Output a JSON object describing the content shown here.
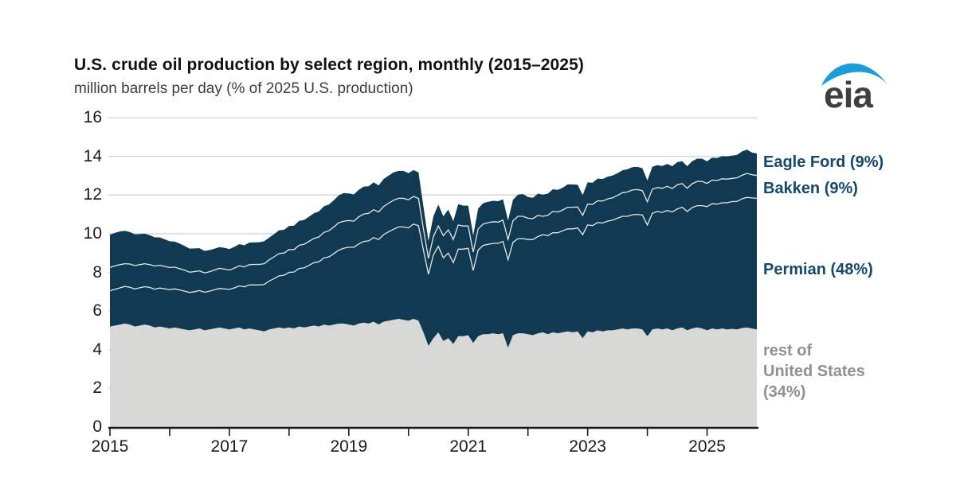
{
  "header": {
    "title": "U.S. crude oil production by select region, monthly (2015–2025)",
    "subtitle": "million barrels per day (% of 2025 U.S. production)"
  },
  "logo": {
    "text": "eia",
    "text_color": "#3f3f3f",
    "swoosh_color": "#1b9dd9"
  },
  "legend": {
    "eagle_ford": "Eagle Ford (9%)",
    "bakken": "Bakken (9%)",
    "permian": "Permian (48%)",
    "rest_lines": [
      "rest of",
      "United States",
      "(34%)"
    ],
    "navy_text_color": "#14496b",
    "gray_text_color": "#8f9091"
  },
  "chart_data": {
    "type": "area",
    "stacked": true,
    "title": "U.S. crude oil production by select region, monthly (2015–2025)",
    "ylabel": "million barrels per day",
    "unit": "million barrels per day",
    "x_start": "2015-01",
    "x_end": "2025-11",
    "x_interval": "monthly",
    "x_axis": {
      "tick_years": [
        2015,
        2016,
        2017,
        2018,
        2019,
        2020,
        2021,
        2022,
        2023,
        2024,
        2025
      ],
      "label_years": [
        2015,
        2017,
        2019,
        2021,
        2023,
        2025
      ]
    },
    "y_axis": {
      "min": 0,
      "max": 16,
      "ticks": [
        0,
        2,
        4,
        6,
        8,
        10,
        12,
        14,
        16
      ],
      "grid": true
    },
    "colors": {
      "rest_area": "#d8d8d6",
      "shale_area": "#113a52",
      "separator_line": "rgba(255,255,255,0.88)",
      "gridline": "#d9d9d9",
      "axis": "#1a1a1a"
    },
    "stack_order_bottom_to_top": [
      "rest of United States",
      "Permian",
      "Bakken",
      "Eagle Ford"
    ],
    "series": [
      {
        "name": "rest of United States",
        "share_of_2025": "34%",
        "values": [
          5.2,
          5.25,
          5.3,
          5.35,
          5.3,
          5.2,
          5.25,
          5.3,
          5.25,
          5.15,
          5.2,
          5.15,
          5.1,
          5.15,
          5.1,
          5.05,
          5.0,
          5.05,
          5.1,
          5.0,
          5.05,
          5.1,
          5.15,
          5.1,
          5.05,
          5.1,
          5.15,
          5.05,
          5.1,
          5.05,
          5.0,
          4.95,
          5.05,
          5.1,
          5.15,
          5.1,
          5.15,
          5.1,
          5.2,
          5.15,
          5.2,
          5.25,
          5.2,
          5.3,
          5.25,
          5.3,
          5.35,
          5.35,
          5.3,
          5.25,
          5.35,
          5.4,
          5.35,
          5.45,
          5.3,
          5.45,
          5.5,
          5.55,
          5.6,
          5.55,
          5.5,
          5.6,
          5.5,
          4.9,
          4.2,
          4.6,
          4.9,
          4.45,
          4.6,
          4.3,
          4.7,
          4.7,
          4.75,
          4.35,
          4.7,
          4.8,
          4.8,
          4.85,
          4.8,
          4.85,
          4.1,
          4.75,
          4.85,
          4.85,
          4.8,
          4.75,
          4.85,
          4.9,
          4.8,
          4.9,
          4.85,
          4.9,
          4.95,
          4.9,
          4.95,
          4.6,
          4.95,
          4.9,
          5.0,
          4.95,
          5.0,
          5.0,
          5.05,
          5.1,
          5.05,
          5.1,
          5.1,
          5.05,
          4.7,
          5.05,
          5.1,
          5.05,
          5.1,
          5.0,
          5.1,
          5.15,
          5.0,
          5.1,
          5.15,
          5.1,
          5.0,
          5.1,
          5.05,
          5.1,
          5.05,
          5.08,
          5.05,
          5.12,
          5.15,
          5.1,
          5.05
        ]
      },
      {
        "name": "Permian",
        "share_of_2025": "48%",
        "values": [
          1.85,
          1.87,
          1.9,
          1.92,
          1.93,
          1.94,
          1.95,
          1.96,
          1.97,
          1.98,
          1.99,
          2.0,
          2.0,
          2.0,
          1.99,
          1.98,
          1.96,
          1.95,
          1.96,
          1.97,
          1.98,
          2.0,
          2.02,
          2.04,
          2.07,
          2.1,
          2.15,
          2.2,
          2.25,
          2.3,
          2.35,
          2.42,
          2.5,
          2.58,
          2.67,
          2.75,
          2.85,
          2.92,
          3.0,
          3.08,
          3.16,
          3.25,
          3.35,
          3.45,
          3.55,
          3.67,
          3.8,
          3.9,
          4.0,
          4.05,
          4.12,
          4.2,
          4.28,
          4.35,
          4.4,
          4.5,
          4.6,
          4.68,
          4.75,
          4.8,
          4.8,
          4.9,
          4.92,
          4.25,
          3.7,
          4.3,
          4.45,
          4.3,
          4.4,
          4.2,
          4.5,
          4.5,
          4.5,
          3.75,
          4.45,
          4.6,
          4.65,
          4.65,
          4.7,
          4.75,
          4.55,
          4.8,
          4.9,
          4.9,
          4.9,
          4.95,
          5.0,
          5.05,
          5.1,
          5.15,
          5.2,
          5.25,
          5.3,
          5.35,
          5.35,
          5.35,
          5.5,
          5.52,
          5.58,
          5.6,
          5.65,
          5.7,
          5.75,
          5.8,
          5.85,
          5.88,
          5.9,
          5.92,
          5.75,
          6.0,
          6.05,
          6.05,
          6.1,
          6.12,
          6.18,
          6.22,
          6.15,
          6.25,
          6.3,
          6.35,
          6.4,
          6.45,
          6.48,
          6.5,
          6.55,
          6.58,
          6.62,
          6.68,
          6.73,
          6.75,
          6.78
        ]
      },
      {
        "name": "Bakken",
        "share_of_2025": "9%",
        "values": [
          1.2,
          1.22,
          1.2,
          1.18,
          1.2,
          1.21,
          1.2,
          1.19,
          1.18,
          1.2,
          1.18,
          1.16,
          1.15,
          1.12,
          1.1,
          1.08,
          1.05,
          1.04,
          1.02,
          1.0,
          1.0,
          1.02,
          1.04,
          1.03,
          1.0,
          1.02,
          1.04,
          1.03,
          1.05,
          1.06,
          1.06,
          1.08,
          1.1,
          1.12,
          1.16,
          1.15,
          1.18,
          1.16,
          1.2,
          1.22,
          1.24,
          1.26,
          1.28,
          1.32,
          1.35,
          1.38,
          1.42,
          1.4,
          1.38,
          1.35,
          1.4,
          1.42,
          1.42,
          1.44,
          1.42,
          1.46,
          1.48,
          1.5,
          1.48,
          1.48,
          1.45,
          1.43,
          1.4,
          1.1,
          0.82,
          0.95,
          1.05,
          1.15,
          1.2,
          1.2,
          1.25,
          1.2,
          1.15,
          0.95,
          1.1,
          1.1,
          1.12,
          1.12,
          1.1,
          1.1,
          1.05,
          1.12,
          1.15,
          1.15,
          1.1,
          1.08,
          1.1,
          0.95,
          1.05,
          1.1,
          1.07,
          1.08,
          1.12,
          1.12,
          1.08,
          1.0,
          1.08,
          1.1,
          1.12,
          1.14,
          1.15,
          1.16,
          1.18,
          1.22,
          1.26,
          1.28,
          1.28,
          1.26,
          1.2,
          1.25,
          1.24,
          1.25,
          1.25,
          1.22,
          1.25,
          1.22,
          1.2,
          1.23,
          1.25,
          1.25,
          1.2,
          1.22,
          1.22,
          1.24,
          1.22,
          1.2,
          1.22,
          1.22,
          1.24,
          1.2,
          1.18
        ]
      },
      {
        "name": "Eagle Ford",
        "share_of_2025": "9%",
        "values": [
          1.7,
          1.7,
          1.72,
          1.7,
          1.66,
          1.62,
          1.58,
          1.55,
          1.52,
          1.48,
          1.44,
          1.4,
          1.36,
          1.32,
          1.3,
          1.26,
          1.22,
          1.2,
          1.17,
          1.14,
          1.12,
          1.1,
          1.1,
          1.1,
          1.08,
          1.1,
          1.12,
          1.12,
          1.14,
          1.14,
          1.15,
          1.16,
          1.15,
          1.18,
          1.2,
          1.2,
          1.22,
          1.24,
          1.26,
          1.26,
          1.28,
          1.3,
          1.32,
          1.35,
          1.36,
          1.38,
          1.42,
          1.45,
          1.4,
          1.38,
          1.4,
          1.42,
          1.4,
          1.42,
          1.38,
          1.42,
          1.42,
          1.44,
          1.42,
          1.42,
          1.38,
          1.36,
          1.35,
          1.15,
          0.9,
          1.05,
          1.1,
          1.0,
          1.05,
          0.95,
          1.08,
          1.05,
          1.05,
          0.85,
          1.05,
          1.08,
          1.08,
          1.08,
          1.08,
          1.08,
          0.98,
          1.08,
          1.12,
          1.15,
          1.1,
          1.08,
          1.12,
          1.12,
          1.12,
          1.15,
          1.15,
          1.15,
          1.18,
          1.18,
          1.15,
          1.05,
          1.12,
          1.12,
          1.15,
          1.14,
          1.15,
          1.15,
          1.15,
          1.16,
          1.18,
          1.18,
          1.18,
          1.16,
          1.1,
          1.16,
          1.16,
          1.15,
          1.16,
          1.15,
          1.17,
          1.16,
          1.14,
          1.17,
          1.18,
          1.18,
          1.14,
          1.16,
          1.16,
          1.17,
          1.18,
          1.18,
          1.18,
          1.23,
          1.23,
          1.15,
          1.14
        ]
      }
    ]
  }
}
